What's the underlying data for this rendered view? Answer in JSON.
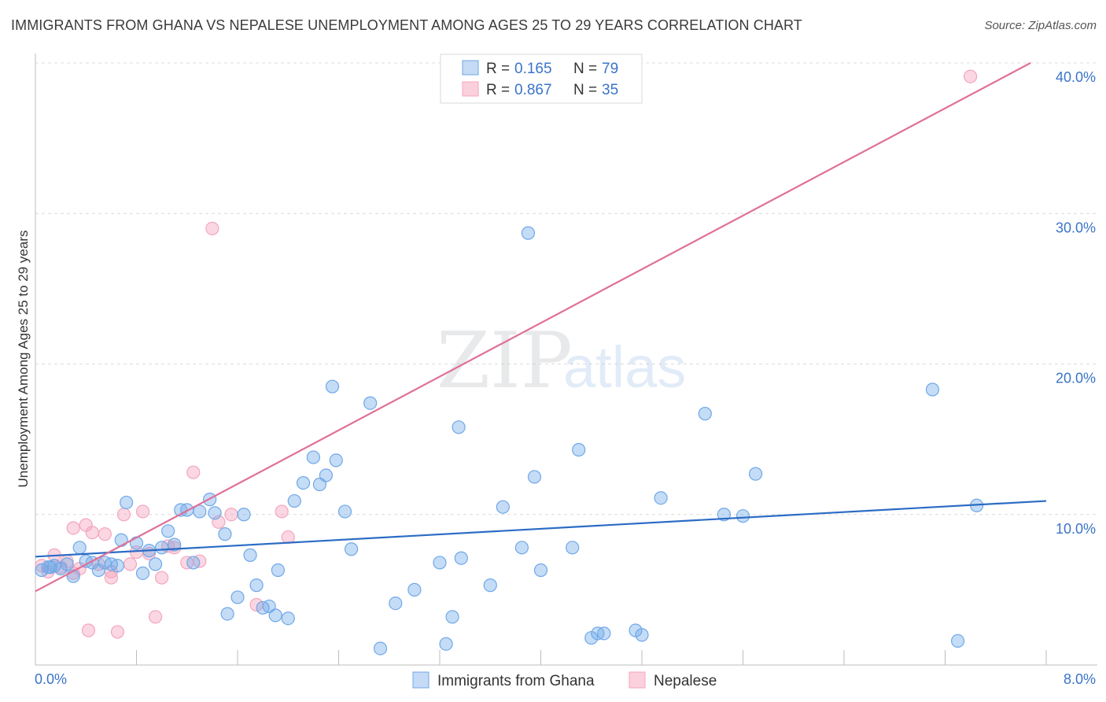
{
  "header": {
    "title": "IMMIGRANTS FROM GHANA VS NEPALESE UNEMPLOYMENT AMONG AGES 25 TO 29 YEARS CORRELATION CHART",
    "source": "Source: ZipAtlas.com"
  },
  "watermark": {
    "zip": "ZIP",
    "atlas": "atlas"
  },
  "colors": {
    "ghana": "#6fa8e8",
    "ghana_line": "#2b6cc4",
    "nepalese": "#f4a6be",
    "nepalese_line": "#e07098",
    "tick_text": "#3a74c8"
  },
  "chart_data": {
    "type": "scatter",
    "title": "IMMIGRANTS FROM GHANA VS NEPALESE UNEMPLOYMENT AMONG AGES 25 TO 29 YEARS CORRELATION CHART",
    "xlabel": "",
    "ylabel": "Unemployment Among Ages 25 to 29 years",
    "xlim": [
      0,
      8
    ],
    "ylim": [
      0,
      40
    ],
    "x_tick_labels": [
      {
        "value": 0,
        "label": "0.0%"
      },
      {
        "value": 8,
        "label": "8.0%"
      }
    ],
    "y_tick_labels": [
      {
        "value": 10,
        "label": "10.0%"
      },
      {
        "value": 20,
        "label": "20.0%"
      },
      {
        "value": 30,
        "label": "30.0%"
      },
      {
        "value": 40,
        "label": "40.0%"
      }
    ],
    "legend": [
      {
        "series": "Immigrants from Ghana",
        "r_label": "R =",
        "r_value": "0.165",
        "n_label": "N =",
        "n_value": "79"
      },
      {
        "series": "Nepalese",
        "r_label": "R =",
        "r_value": "0.867",
        "n_label": "N =",
        "n_value": "35"
      }
    ],
    "series": [
      {
        "name": "Immigrants from Ghana",
        "trend": {
          "x0": 0,
          "y0": 7.2,
          "x1": 8,
          "y1": 10.9
        },
        "points": [
          [
            0.05,
            6.3
          ],
          [
            0.1,
            6.5
          ],
          [
            0.15,
            6.6
          ],
          [
            0.2,
            6.4
          ],
          [
            0.25,
            6.7
          ],
          [
            0.3,
            5.9
          ],
          [
            0.35,
            7.8
          ],
          [
            0.4,
            6.9
          ],
          [
            0.45,
            6.8
          ],
          [
            0.5,
            6.3
          ],
          [
            0.55,
            6.8
          ],
          [
            0.6,
            6.7
          ],
          [
            0.65,
            6.6
          ],
          [
            0.72,
            10.8
          ],
          [
            0.68,
            8.3
          ],
          [
            0.8,
            8.1
          ],
          [
            0.85,
            6.1
          ],
          [
            0.9,
            7.6
          ],
          [
            0.95,
            6.7
          ],
          [
            1.0,
            7.8
          ],
          [
            1.05,
            8.9
          ],
          [
            1.1,
            8.0
          ],
          [
            1.15,
            10.3
          ],
          [
            1.2,
            10.3
          ],
          [
            1.25,
            6.8
          ],
          [
            1.3,
            10.2
          ],
          [
            1.38,
            11.0
          ],
          [
            1.42,
            10.1
          ],
          [
            1.5,
            8.7
          ],
          [
            1.52,
            3.4
          ],
          [
            1.6,
            4.5
          ],
          [
            1.65,
            10.0
          ],
          [
            1.7,
            7.3
          ],
          [
            1.75,
            5.3
          ],
          [
            1.8,
            3.8
          ],
          [
            1.85,
            3.9
          ],
          [
            1.9,
            3.3
          ],
          [
            1.92,
            6.3
          ],
          [
            2.0,
            3.1
          ],
          [
            2.05,
            10.9
          ],
          [
            2.12,
            12.1
          ],
          [
            2.2,
            13.8
          ],
          [
            2.25,
            12.0
          ],
          [
            2.3,
            12.6
          ],
          [
            2.35,
            18.5
          ],
          [
            2.38,
            13.6
          ],
          [
            2.45,
            10.2
          ],
          [
            2.5,
            7.7
          ],
          [
            2.65,
            17.4
          ],
          [
            2.73,
            1.1
          ],
          [
            2.85,
            4.1
          ],
          [
            3.0,
            5.0
          ],
          [
            3.2,
            6.8
          ],
          [
            3.25,
            1.4
          ],
          [
            3.3,
            3.2
          ],
          [
            3.35,
            15.8
          ],
          [
            3.37,
            7.1
          ],
          [
            3.6,
            5.3
          ],
          [
            3.7,
            10.5
          ],
          [
            3.85,
            7.8
          ],
          [
            3.9,
            28.7
          ],
          [
            3.95,
            12.5
          ],
          [
            4.0,
            6.3
          ],
          [
            4.25,
            7.8
          ],
          [
            4.3,
            14.3
          ],
          [
            4.4,
            1.8
          ],
          [
            4.45,
            2.1
          ],
          [
            4.5,
            2.1
          ],
          [
            4.75,
            2.3
          ],
          [
            4.8,
            2.0
          ],
          [
            4.95,
            11.1
          ],
          [
            5.3,
            16.7
          ],
          [
            5.45,
            10.0
          ],
          [
            5.6,
            9.9
          ],
          [
            5.7,
            12.7
          ],
          [
            7.1,
            18.3
          ],
          [
            7.3,
            1.6
          ],
          [
            7.45,
            10.6
          ],
          [
            0.12,
            6.5
          ]
        ]
      },
      {
        "name": "Nepalese",
        "trend": {
          "x0": 0,
          "y0": 4.9,
          "x1": 8,
          "y1": 40.0
        },
        "points": [
          [
            0.05,
            6.6
          ],
          [
            0.1,
            6.2
          ],
          [
            0.15,
            7.3
          ],
          [
            0.2,
            6.5
          ],
          [
            0.25,
            6.9
          ],
          [
            0.3,
            6.1
          ],
          [
            0.35,
            6.4
          ],
          [
            0.4,
            9.3
          ],
          [
            0.45,
            8.8
          ],
          [
            0.5,
            6.7
          ],
          [
            0.55,
            8.7
          ],
          [
            0.6,
            5.8
          ],
          [
            0.65,
            2.2
          ],
          [
            0.7,
            10.0
          ],
          [
            0.75,
            6.7
          ],
          [
            0.8,
            7.5
          ],
          [
            0.85,
            10.2
          ],
          [
            0.9,
            7.4
          ],
          [
            0.95,
            3.2
          ],
          [
            1.0,
            5.8
          ],
          [
            1.05,
            7.9
          ],
          [
            1.1,
            7.8
          ],
          [
            1.2,
            6.8
          ],
          [
            1.25,
            12.8
          ],
          [
            1.3,
            6.9
          ],
          [
            1.4,
            29.0
          ],
          [
            1.45,
            9.5
          ],
          [
            1.55,
            10.0
          ],
          [
            1.75,
            4.0
          ],
          [
            1.95,
            10.2
          ],
          [
            2.0,
            8.5
          ],
          [
            0.42,
            2.3
          ],
          [
            0.6,
            6.2
          ],
          [
            7.4,
            39.1
          ],
          [
            0.3,
            9.1
          ]
        ]
      }
    ]
  },
  "bottom_legend": [
    {
      "label": "Immigrants from Ghana"
    },
    {
      "label": "Nepalese"
    }
  ]
}
